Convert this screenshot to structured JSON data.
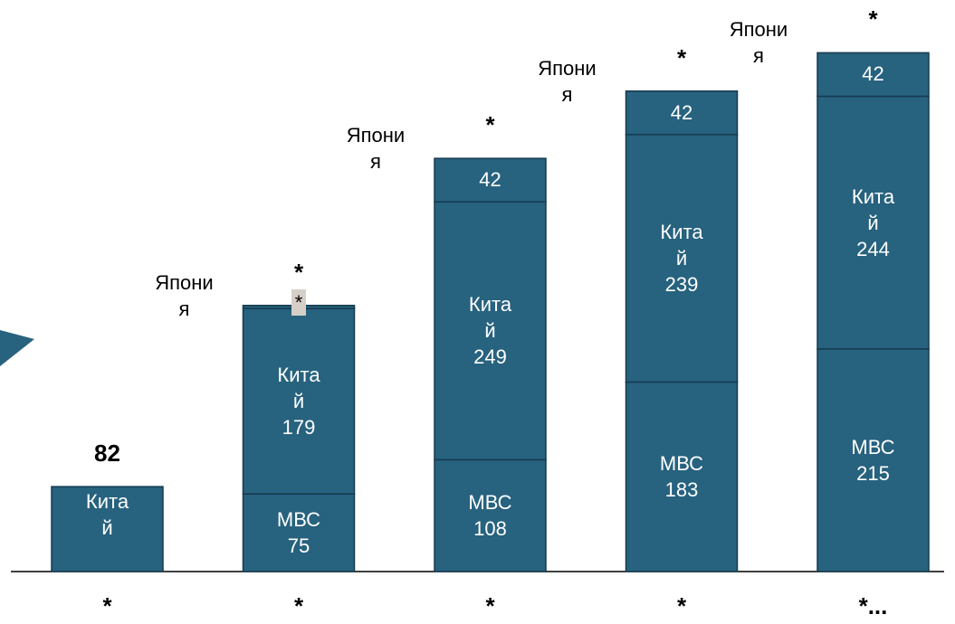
{
  "chart_data": {
    "type": "stacked_bar",
    "categories": [
      "*",
      "*",
      "*",
      "*",
      "*..."
    ],
    "series": [
      {
        "name": "МВС",
        "color": "#27627f",
        "values": [
          null,
          75,
          108,
          183,
          215
        ]
      },
      {
        "name": "Китай",
        "color": "#27627f",
        "values": [
          82,
          179,
          249,
          239,
          244
        ],
        "value_labels": [
          null,
          "179",
          "249",
          "239",
          "244"
        ]
      },
      {
        "name": "Япония",
        "color": "#27627f",
        "values": [
          null,
          3,
          42,
          42,
          42
        ],
        "value_labels": [
          null,
          "*",
          "42",
          "42",
          "42"
        ]
      }
    ],
    "total_labels": [
      "82",
      "*",
      "*",
      "*",
      "*"
    ]
  }
}
